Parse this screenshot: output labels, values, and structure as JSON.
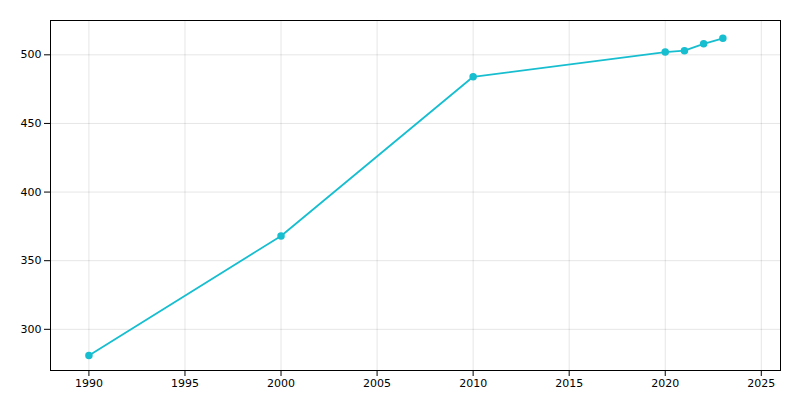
{
  "chart_data": {
    "type": "line",
    "x": [
      1990,
      2000,
      2010,
      2020,
      2021,
      2022,
      2023
    ],
    "values": [
      281,
      368,
      484,
      502,
      503,
      508,
      512
    ],
    "color": "#17becf",
    "marker": "circle",
    "xlim": [
      1988,
      2026
    ],
    "ylim": [
      270,
      525
    ],
    "xticks": [
      1990,
      1995,
      2000,
      2005,
      2010,
      2015,
      2020,
      2025
    ],
    "yticks": [
      300,
      350,
      400,
      450,
      500
    ],
    "grid": true
  }
}
